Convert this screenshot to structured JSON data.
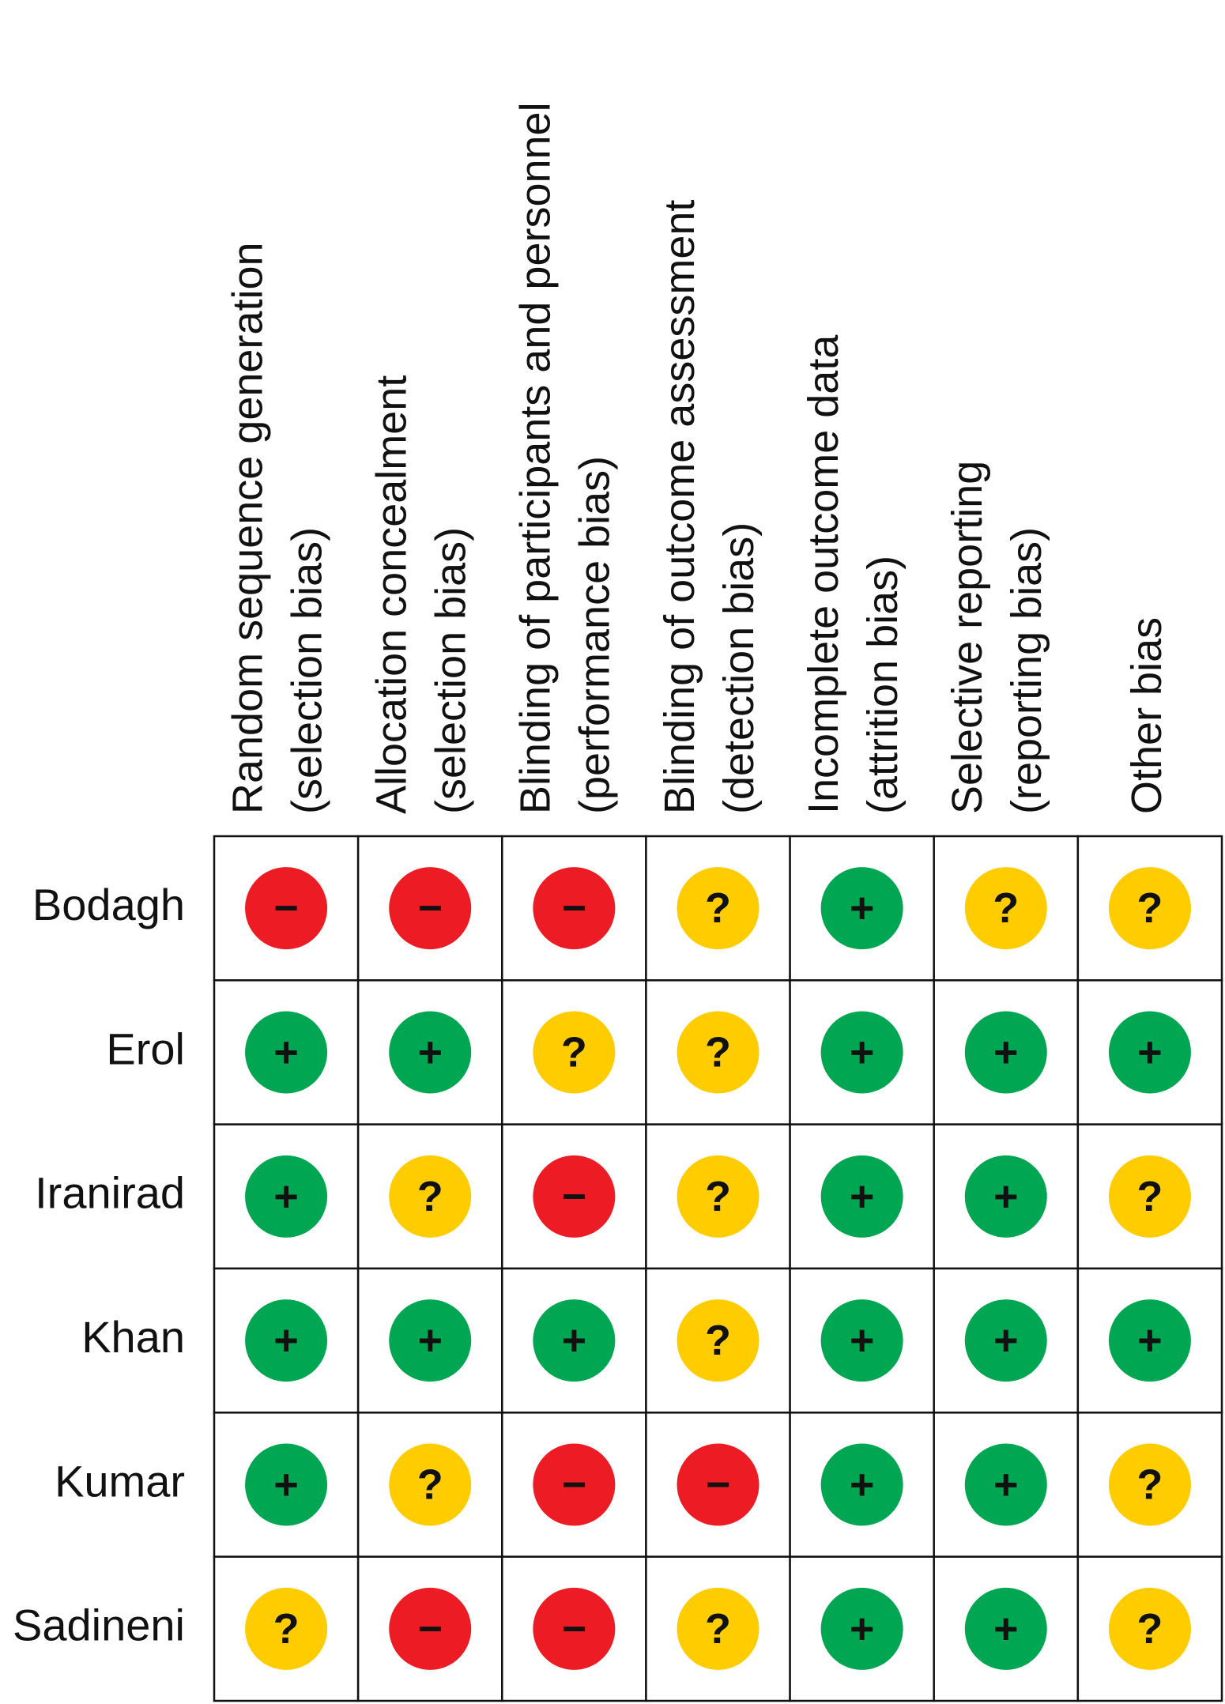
{
  "columns": [
    [
      "Random sequence generation",
      "(selection bias)"
    ],
    [
      "Allocation concealment",
      "(selection bias)"
    ],
    [
      "Blinding of participants and personnel",
      "(performance bias)"
    ],
    [
      "Blinding of outcome assessment",
      "(detection bias)"
    ],
    [
      "Incomplete outcome data",
      "(attrition bias)"
    ],
    [
      "Selective reporting",
      "(reporting bias)"
    ],
    [
      "Other bias"
    ]
  ],
  "rows": [
    {
      "study": "Bodagh",
      "cells": [
        "−",
        "−",
        "−",
        "?",
        "+",
        "?",
        "?"
      ]
    },
    {
      "study": "Erol",
      "cells": [
        "+",
        "+",
        "?",
        "?",
        "+",
        "+",
        "+"
      ]
    },
    {
      "study": "Iranirad",
      "cells": [
        "+",
        "?",
        "−",
        "?",
        "+",
        "+",
        "?"
      ]
    },
    {
      "study": "Khan",
      "cells": [
        "+",
        "+",
        "+",
        "?",
        "+",
        "+",
        "+"
      ]
    },
    {
      "study": "Kumar",
      "cells": [
        "+",
        "?",
        "−",
        "−",
        "+",
        "+",
        "?"
      ]
    },
    {
      "study": "Sadineni",
      "cells": [
        "?",
        "−",
        "−",
        "?",
        "+",
        "+",
        "?"
      ]
    }
  ],
  "colors": {
    "+": "#00a651",
    "?": "#ffcc00",
    "−": "#ed1c24"
  }
}
